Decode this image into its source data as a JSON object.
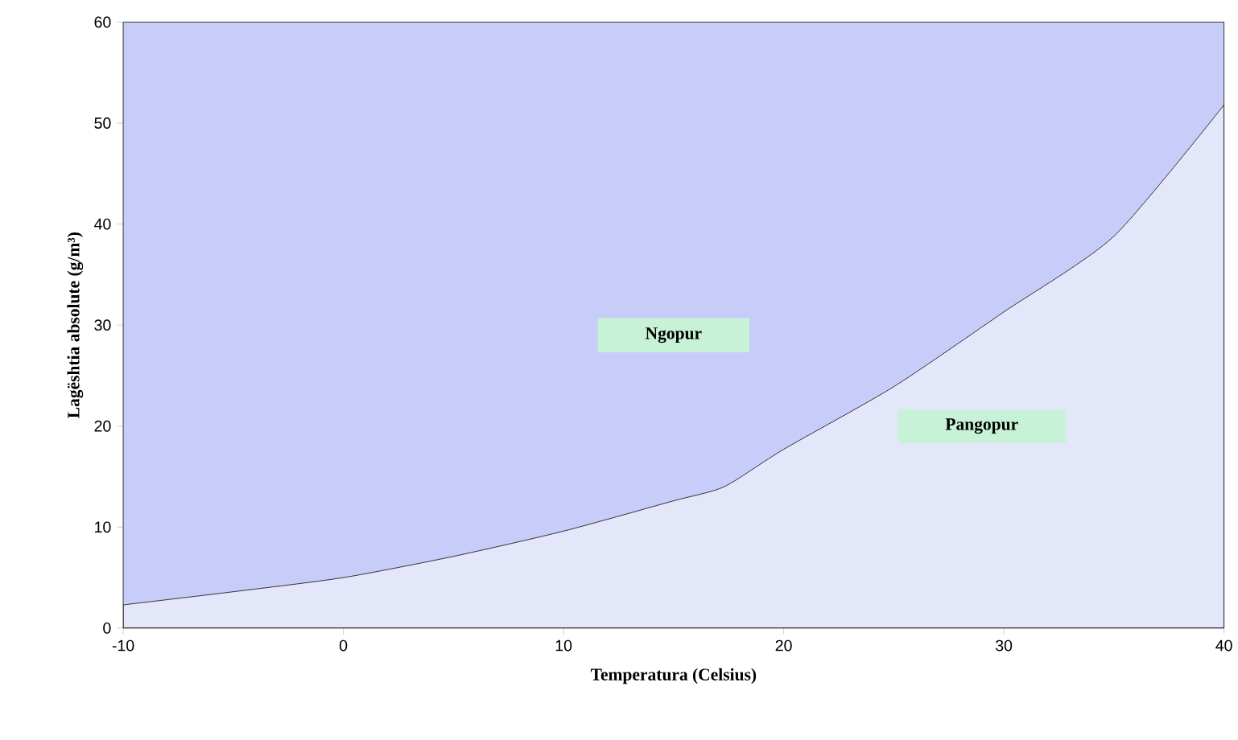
{
  "chart_data": {
    "type": "area",
    "stacked": true,
    "xlabel": "Temperatura (Celsius)",
    "ylabel": "Lagështia absolute  (g/m³)",
    "x": [
      -10,
      -5,
      0,
      5,
      10,
      15,
      17.3,
      20,
      25,
      30,
      35,
      40
    ],
    "series": [
      {
        "name": "Pangopur",
        "color": "#e4e6fa",
        "values": [
          2.3,
          3.6,
          5.0,
          7.1,
          9.6,
          12.6,
          14.0,
          17.7,
          23.9,
          31.3,
          38.8,
          51.8
        ]
      },
      {
        "name": "Ngopur",
        "color": "#c8ccf8",
        "values": [
          57.7,
          56.4,
          55.0,
          52.9,
          50.4,
          47.4,
          46.0,
          42.3,
          36.1,
          28.7,
          21.2,
          8.2
        ]
      }
    ],
    "xlim": [
      -10,
      40
    ],
    "ylim": [
      0,
      60
    ],
    "xticks": [
      -10,
      0,
      10,
      20,
      30,
      40
    ],
    "yticks": [
      0,
      10,
      20,
      30,
      40,
      50,
      60
    ],
    "grid": false,
    "legend": false
  }
}
